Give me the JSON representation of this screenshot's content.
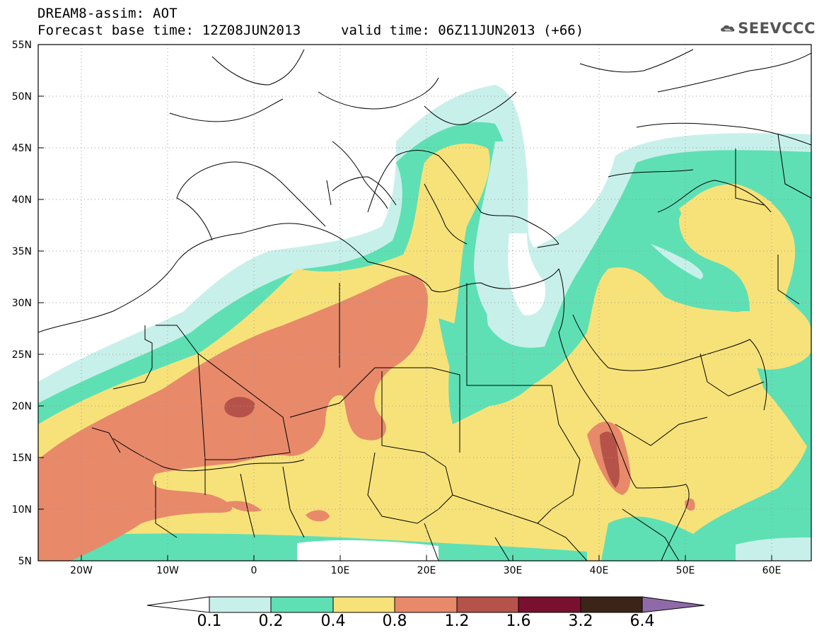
{
  "title": {
    "line1": "DREAM8-assim: AOT",
    "line2": "Forecast base time: 12Z08JUN2013",
    "valid": "valid time: 06Z11JUN2013 (+66)"
  },
  "logo": {
    "icon": "cloud-icon",
    "text": "SEEVCCC"
  },
  "lat_labels": [
    "55N",
    "50N",
    "45N",
    "40N",
    "35N",
    "30N",
    "25N",
    "20N",
    "15N",
    "10N",
    "5N"
  ],
  "lon_labels": [
    "20W",
    "10W",
    "0",
    "10E",
    "20E",
    "30E",
    "40E",
    "50E",
    "60E"
  ],
  "legend": {
    "values": [
      "0.1",
      "0.2",
      "0.4",
      "0.8",
      "1.2",
      "1.6",
      "3.2",
      "6.4"
    ],
    "colors": {
      "below": "#ffffff",
      "c1": "#c8f0ea",
      "c2": "#5ee0b4",
      "c3": "#f7e27a",
      "c4": "#e8896a",
      "c5": "#b5534a",
      "c6": "#7a1030",
      "c7": "#3d2418",
      "above": "#8f6aa8"
    }
  }
}
